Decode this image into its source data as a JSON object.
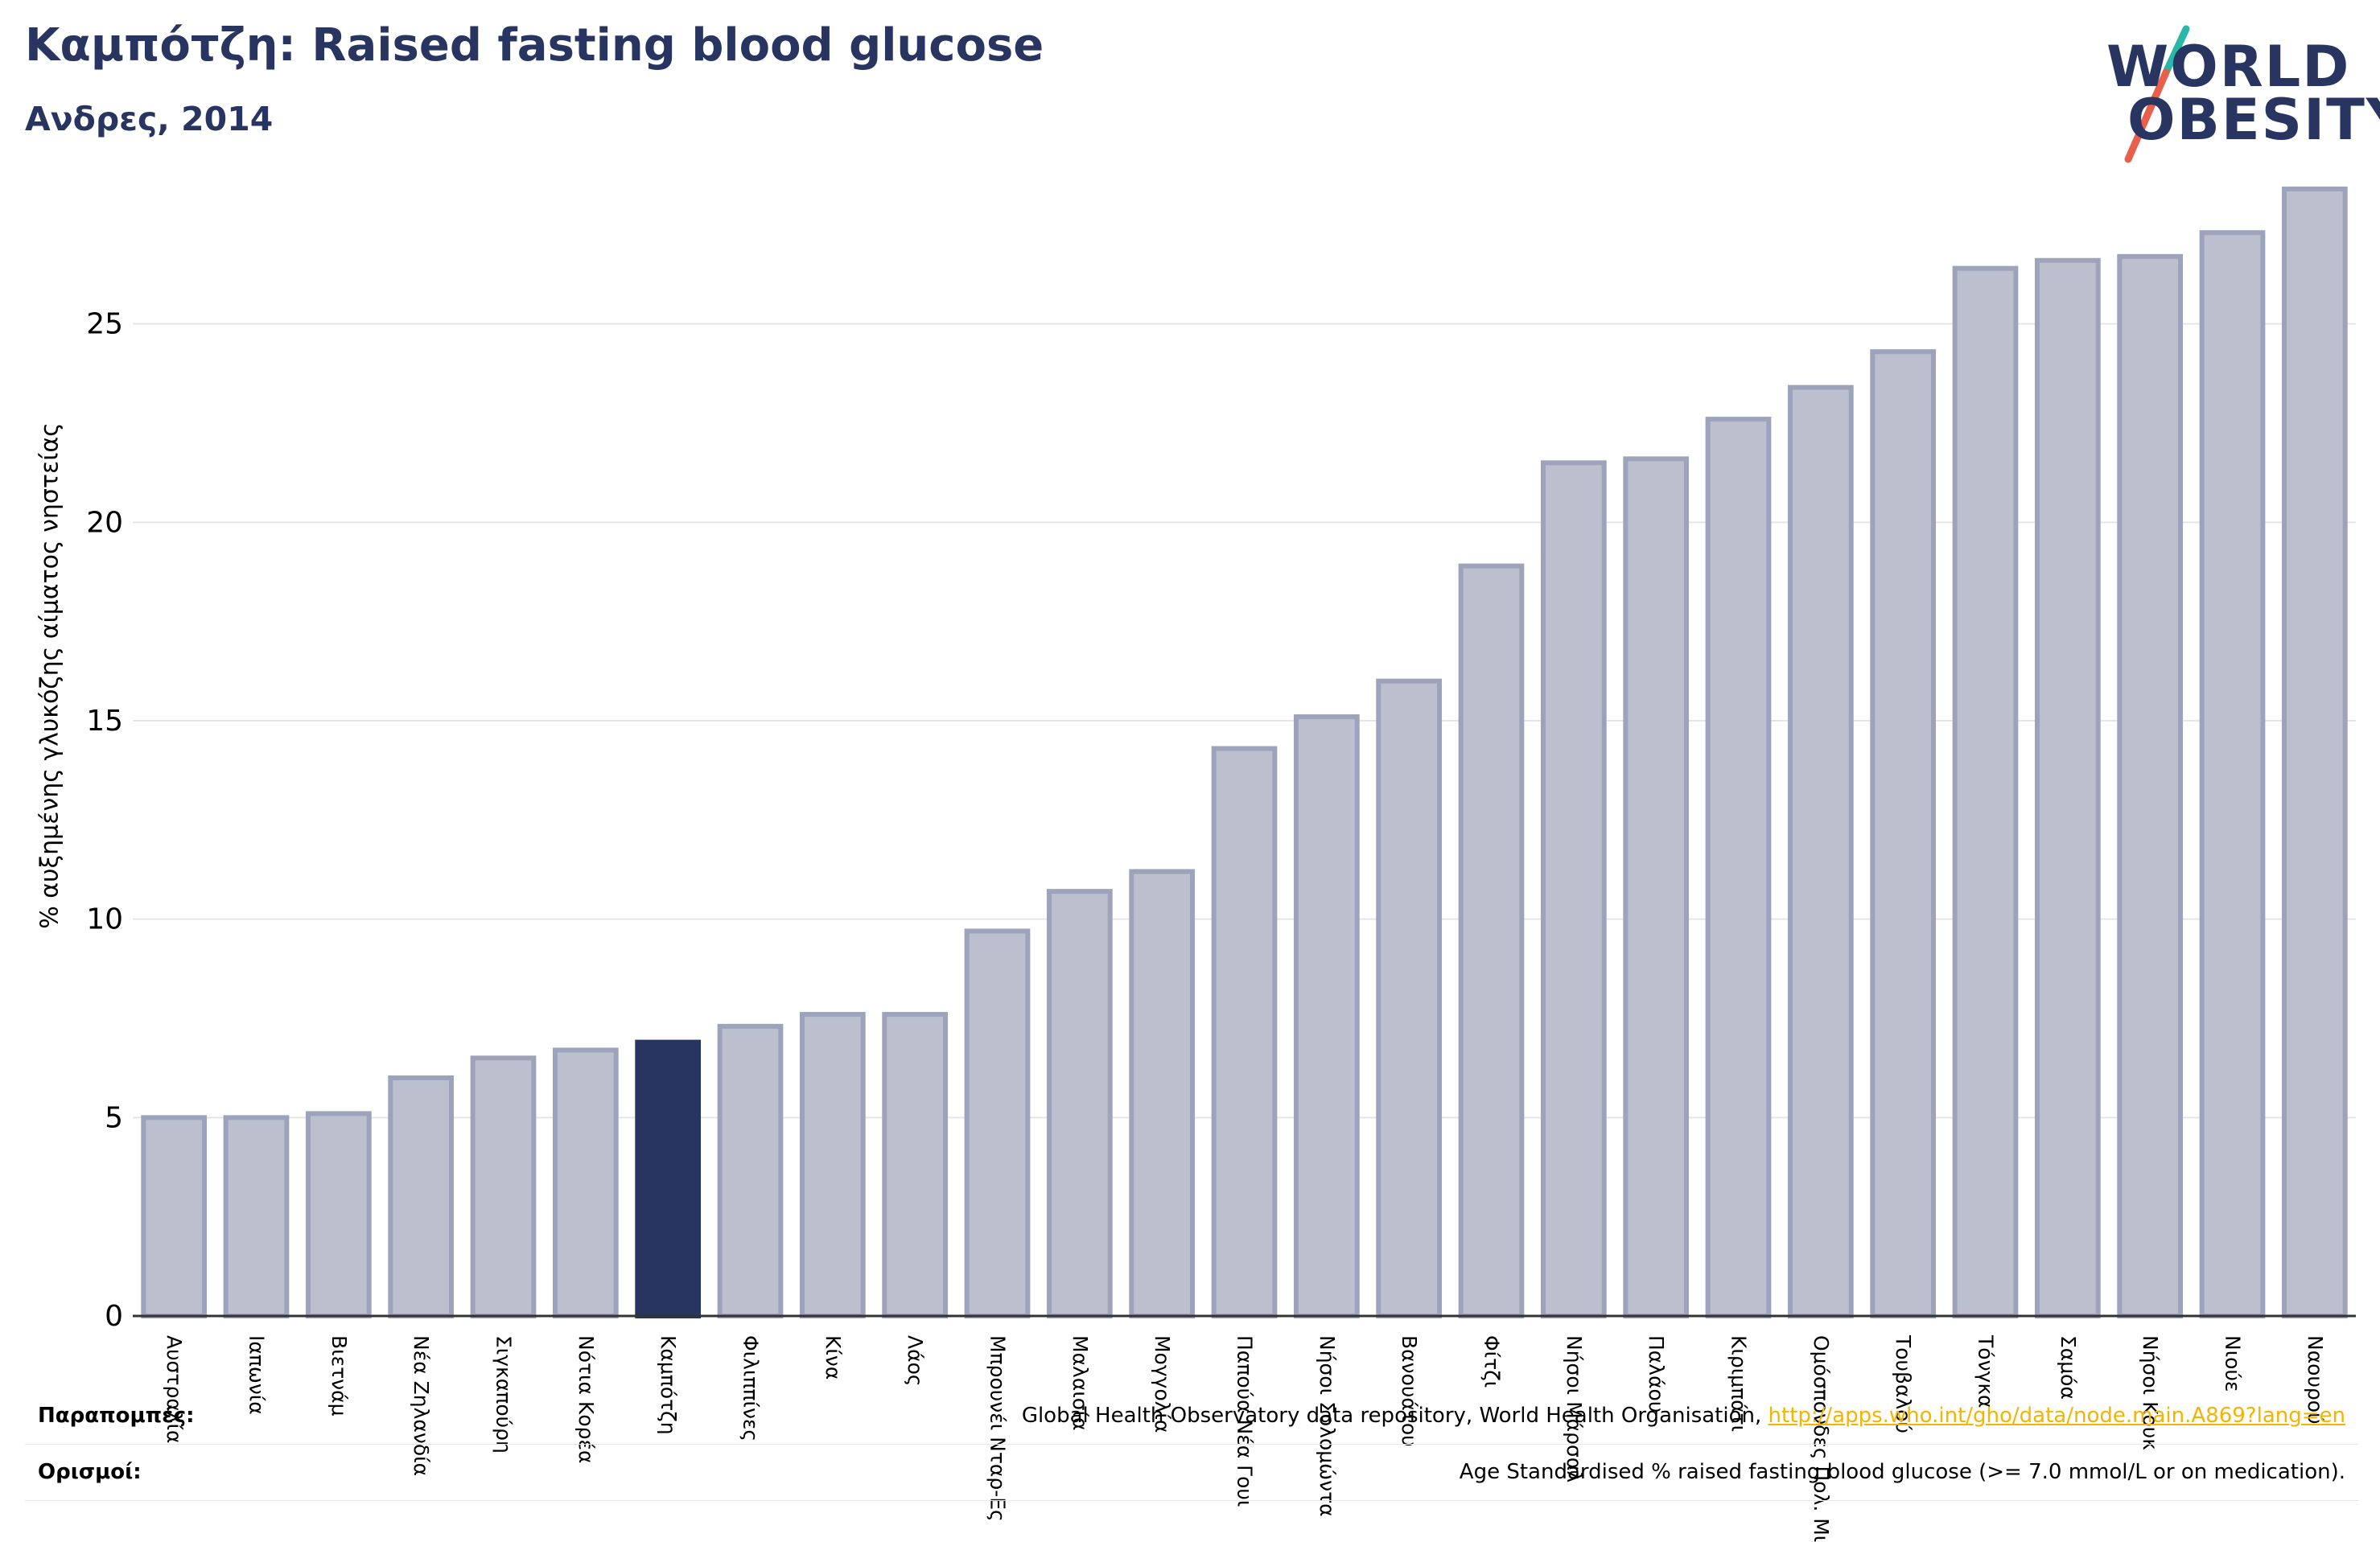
{
  "header": {
    "title": "Καμπότζη: Raised fasting blood glucose",
    "subtitle": "Ανδρες, 2014"
  },
  "logo": {
    "line1": "WORLD",
    "line2": "OBESITY",
    "colors": {
      "text": "#283561",
      "slash_top": "#2ab7a9",
      "slash_bottom": "#e8604c"
    }
  },
  "chart_data": {
    "type": "bar",
    "ylabel": "% αυξημένης γλυκόζης αίματος νηστείας",
    "ylim": [
      0,
      28.5
    ],
    "yticks": [
      0,
      5,
      10,
      15,
      20,
      25
    ],
    "grid": true,
    "highlight": "Καμπότζη",
    "colors": {
      "bar": "#bcbfcd",
      "bar_edge": "#9da3ba",
      "highlight": "#283561"
    },
    "categories": [
      "Αυστραλία",
      "Ιαπωνία",
      "Βιετνάμ",
      "Νέα Ζηλανδία",
      "Σιγκαπούρη",
      "Νότια Κορέα",
      "Καμπότζη",
      "Φιλιππίνες",
      "Κίνα",
      "Λάος",
      "Μπρουνέι Νταρ-Ες",
      "Μαλαισία",
      "Μογγολία",
      "Παπούα Νέα Γουι",
      "Νήσοι Σολομώντα",
      "Βανουάτου",
      "Φίτζι",
      "Νήσοι Μάρσαλ",
      "Παλάου",
      "Κιριμπάτι",
      "Ομόσπονδες Πολ. Μικρ",
      "Τουβαλού",
      "Τόνγκα",
      "Σαμόα",
      "Νήσοι Κουκ",
      "Νιούε",
      "Ναουρού"
    ],
    "values": [
      5.0,
      5.0,
      5.1,
      6.0,
      6.5,
      6.7,
      6.9,
      7.3,
      7.6,
      7.6,
      9.7,
      10.7,
      11.2,
      14.3,
      15.1,
      16.0,
      18.9,
      21.5,
      21.6,
      22.6,
      23.4,
      24.3,
      26.4,
      26.6,
      26.7,
      27.3,
      28.4
    ]
  },
  "footer": {
    "refs_label": "Παραπομπές:",
    "refs_text": "Global Health Observatory data repository, World Health Organisation, ",
    "refs_link": "http://apps.who.int/gho/data/node.main.A869?lang=en",
    "defs_label": "Ορισμοί:",
    "defs_text": "Age Standardised % raised fasting blood glucose (>= 7.0 mmol/L or on medication)."
  }
}
